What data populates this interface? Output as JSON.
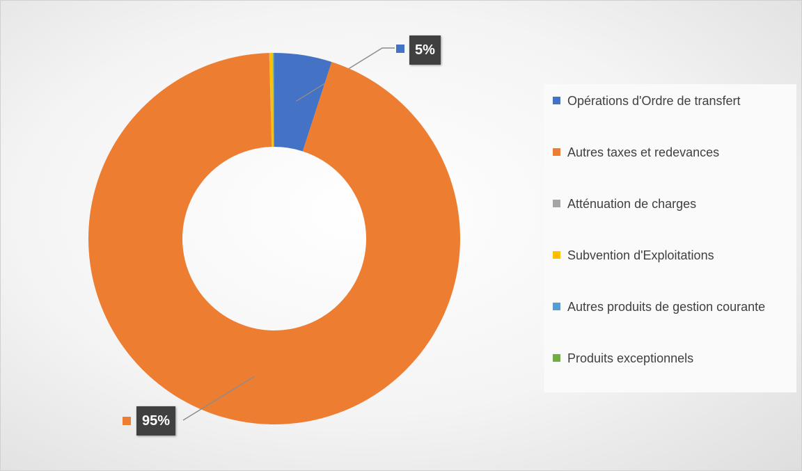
{
  "chart_data": {
    "type": "donut",
    "categories": [
      "Opérations d'Ordre de transfert",
      "Autres taxes et redevances",
      "Atténuation de charges",
      "Subvention d'Exploitations",
      "Autres produits de gestion courante",
      "Produits exceptionnels"
    ],
    "values": [
      5,
      94.6,
      0.02,
      0.3,
      0.02,
      0.1
    ],
    "value_labels": [
      "5%",
      "95%",
      null,
      null,
      null,
      null
    ],
    "colors": [
      "#4472c4",
      "#ed7d31",
      "#a5a5a5",
      "#ffc000",
      "#5b9bd5",
      "#70ad47"
    ],
    "legend": "right"
  }
}
